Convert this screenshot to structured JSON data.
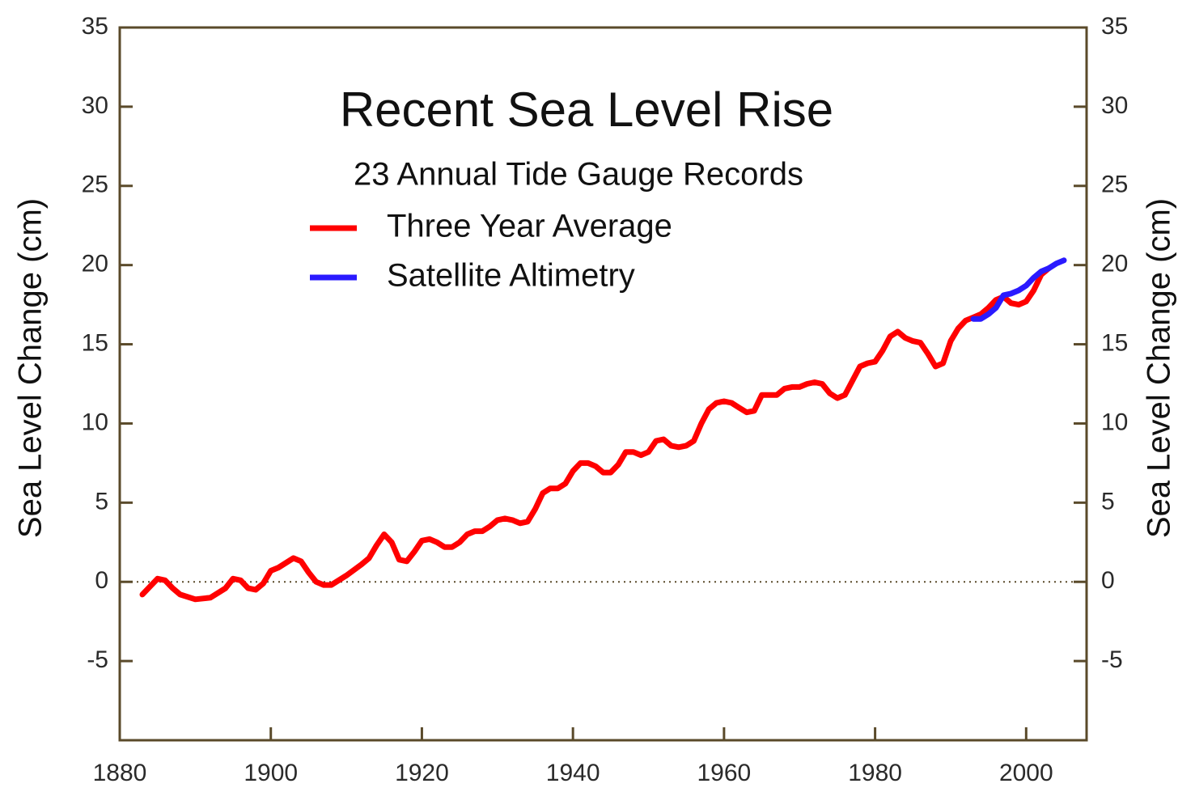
{
  "chart_data": {
    "type": "line",
    "title": "Recent Sea Level Rise",
    "subtitle": "23 Annual Tide Gauge Records",
    "y_label": "Sea Level Change (cm)",
    "y2_label": "Sea Level Change (cm)",
    "xlim": [
      1880,
      2008
    ],
    "xticks": [
      1880,
      1900,
      1920,
      1940,
      1960,
      1980,
      2000
    ],
    "ylim": [
      -10,
      35
    ],
    "yticks": [
      -5,
      0,
      5,
      10,
      15,
      20,
      25,
      30,
      35
    ],
    "y2lim": [
      -10,
      35
    ],
    "y2ticks": [
      -5,
      0,
      5,
      10,
      15,
      20,
      25,
      30,
      35
    ],
    "zero_line": true,
    "grid": false,
    "legend": "upper left",
    "series": [
      {
        "name": "Three Year Average",
        "color": "#ff0000",
        "x": [
          1883,
          1884,
          1885,
          1886,
          1887,
          1888,
          1890,
          1892,
          1894,
          1895,
          1896,
          1897,
          1898,
          1899,
          1900,
          1901,
          1903,
          1904,
          1905,
          1906,
          1907,
          1908,
          1910,
          1912,
          1913,
          1914,
          1915,
          1916,
          1917,
          1918,
          1919,
          1920,
          1921,
          1922,
          1923,
          1924,
          1925,
          1926,
          1927,
          1928,
          1929,
          1930,
          1931,
          1932,
          1933,
          1934,
          1935,
          1936,
          1937,
          1938,
          1939,
          1940,
          1941,
          1942,
          1943,
          1944,
          1945,
          1946,
          1947,
          1948,
          1949,
          1950,
          1951,
          1952,
          1953,
          1954,
          1955,
          1956,
          1957,
          1958,
          1959,
          1960,
          1961,
          1962,
          1963,
          1964,
          1965,
          1966,
          1967,
          1968,
          1969,
          1970,
          1971,
          1972,
          1973,
          1974,
          1975,
          1976,
          1977,
          1978,
          1979,
          1980,
          1981,
          1982,
          1983,
          1984,
          1985,
          1986,
          1987,
          1988,
          1989,
          1990,
          1991,
          1992,
          1993,
          1994,
          1995,
          1996,
          1997,
          1998,
          1999,
          2000,
          2001,
          2002,
          2003
        ],
        "values": [
          -0.8,
          -0.3,
          0.2,
          0.1,
          -0.4,
          -0.8,
          -1.1,
          -1.0,
          -0.4,
          0.2,
          0.1,
          -0.4,
          -0.5,
          -0.1,
          0.7,
          0.9,
          1.5,
          1.3,
          0.6,
          0.0,
          -0.2,
          -0.2,
          0.4,
          1.1,
          1.5,
          2.3,
          3.0,
          2.5,
          1.4,
          1.3,
          1.9,
          2.6,
          2.7,
          2.5,
          2.2,
          2.2,
          2.5,
          3.0,
          3.2,
          3.2,
          3.5,
          3.9,
          4.0,
          3.9,
          3.7,
          3.8,
          4.6,
          5.6,
          5.9,
          5.9,
          6.2,
          7.0,
          7.5,
          7.5,
          7.3,
          6.9,
          6.9,
          7.4,
          8.2,
          8.2,
          8.0,
          8.2,
          8.9,
          9.0,
          8.6,
          8.5,
          8.6,
          8.9,
          10.0,
          10.9,
          11.3,
          11.4,
          11.3,
          11.0,
          10.7,
          10.8,
          11.8,
          11.8,
          11.8,
          12.2,
          12.3,
          12.3,
          12.5,
          12.6,
          12.5,
          11.9,
          11.6,
          11.8,
          12.7,
          13.6,
          13.8,
          13.9,
          14.6,
          15.5,
          15.8,
          15.4,
          15.2,
          15.1,
          14.4,
          13.6,
          13.8,
          15.2,
          16.0,
          16.5,
          16.7,
          16.9,
          17.3,
          17.8,
          18.0,
          17.6,
          17.5,
          17.7,
          18.4,
          19.4,
          19.8
        ]
      },
      {
        "name": "Satellite Altimetry",
        "color": "#2a1aff",
        "x": [
          1993,
          1994,
          1995,
          1996,
          1997,
          1998,
          1999,
          2000,
          2001,
          2002,
          2003,
          2004,
          2005
        ],
        "values": [
          16.6,
          16.6,
          16.9,
          17.3,
          18.1,
          18.2,
          18.4,
          18.7,
          19.2,
          19.6,
          19.8,
          20.1,
          20.3
        ]
      }
    ]
  }
}
